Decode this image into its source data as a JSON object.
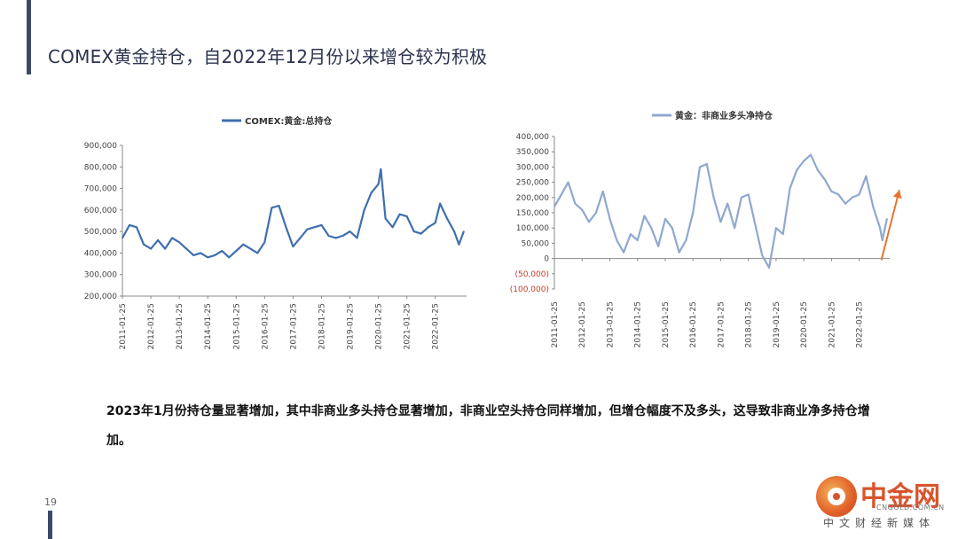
{
  "page": {
    "title": "COMEX黄金持仓，自2022年12月份以来增仓较为积极",
    "body_text": "2023年1月份持仓量显著增加，其中非商业多头持仓显著增加，非商业空头持仓同样增加，但增仓幅度不及多头，这导致非商业净多持仓增加。",
    "page_number": "19"
  },
  "logo": {
    "name": "中金网",
    "site": "CNGOLD.COM.CN",
    "tagline": "中文财经新媒体"
  },
  "colors": {
    "title": "#2b3450",
    "accent_bar": "#3b4a6b",
    "series_left": "#3f6fae",
    "series_right": "#8fa8cf",
    "arrow": "#e8742e",
    "negative_tick": "#c0392b"
  },
  "chart_data": [
    {
      "type": "line",
      "legend": "COMEX:黄金:总持仓",
      "legend_position": "top",
      "ylim": [
        200000,
        900000
      ],
      "yticks": [
        "200,000",
        "300,000",
        "400,000",
        "500,000",
        "600,000",
        "700,000",
        "800,000",
        "900,000"
      ],
      "ytick_values": [
        200000,
        300000,
        400000,
        500000,
        600000,
        700000,
        800000,
        900000
      ],
      "xticks": [
        "2011-01-25",
        "2012-01-25",
        "2013-01-25",
        "2014-01-25",
        "2015-01-25",
        "2016-01-25",
        "2017-01-25",
        "2018-01-25",
        "2019-01-25",
        "2020-01-25",
        "2021-01-25",
        "2022-01-25"
      ],
      "series": [
        {
          "name": "COMEX:黄金:总持仓",
          "x": [
            "2011-01",
            "2011-04",
            "2011-07",
            "2011-10",
            "2012-01",
            "2012-04",
            "2012-07",
            "2012-10",
            "2013-01",
            "2013-04",
            "2013-07",
            "2013-10",
            "2014-01",
            "2014-04",
            "2014-07",
            "2014-10",
            "2015-01",
            "2015-04",
            "2015-07",
            "2015-10",
            "2016-01",
            "2016-04",
            "2016-07",
            "2016-10",
            "2017-01",
            "2017-04",
            "2017-07",
            "2017-10",
            "2018-01",
            "2018-04",
            "2018-07",
            "2018-10",
            "2019-01",
            "2019-04",
            "2019-07",
            "2019-10",
            "2020-01",
            "2020-02",
            "2020-04",
            "2020-07",
            "2020-10",
            "2021-01",
            "2021-04",
            "2021-07",
            "2021-10",
            "2022-01",
            "2022-03",
            "2022-06",
            "2022-09",
            "2022-11",
            "2023-01"
          ],
          "values": [
            470000,
            530000,
            520000,
            440000,
            420000,
            460000,
            420000,
            470000,
            450000,
            420000,
            390000,
            400000,
            380000,
            390000,
            410000,
            380000,
            410000,
            440000,
            420000,
            400000,
            450000,
            610000,
            620000,
            520000,
            430000,
            470000,
            510000,
            520000,
            530000,
            480000,
            470000,
            480000,
            500000,
            470000,
            600000,
            680000,
            720000,
            790000,
            560000,
            520000,
            580000,
            570000,
            500000,
            490000,
            520000,
            540000,
            630000,
            560000,
            500000,
            440000,
            500000
          ]
        }
      ]
    },
    {
      "type": "line",
      "legend": "黄金：非商业多头净持仓",
      "legend_position": "top",
      "ylim": [
        -100000,
        400000
      ],
      "yticks": [
        "(100,000)",
        "(50,000)",
        "0",
        "50,000",
        "100,000",
        "150,000",
        "200,000",
        "250,000",
        "300,000",
        "350,000",
        "400,000"
      ],
      "ytick_values": [
        -100000,
        -50000,
        0,
        50000,
        100000,
        150000,
        200000,
        250000,
        300000,
        350000,
        400000
      ],
      "xticks": [
        "2011-01-25",
        "2012-01-25",
        "2013-01-25",
        "2014-01-25",
        "2015-01-25",
        "2016-01-25",
        "2017-01-25",
        "2018-01-25",
        "2019-01-25",
        "2020-01-25",
        "2021-01-25",
        "2022-01-25"
      ],
      "series": [
        {
          "name": "黄金：非商业多头净持仓",
          "x": [
            "2011-01",
            "2011-04",
            "2011-07",
            "2011-10",
            "2012-01",
            "2012-04",
            "2012-07",
            "2012-10",
            "2013-01",
            "2013-04",
            "2013-07",
            "2013-10",
            "2014-01",
            "2014-04",
            "2014-07",
            "2014-10",
            "2015-01",
            "2015-04",
            "2015-07",
            "2015-10",
            "2016-01",
            "2016-04",
            "2016-07",
            "2016-10",
            "2017-01",
            "2017-04",
            "2017-07",
            "2017-10",
            "2018-01",
            "2018-04",
            "2018-07",
            "2018-10",
            "2019-01",
            "2019-04",
            "2019-07",
            "2019-10",
            "2020-01",
            "2020-04",
            "2020-07",
            "2020-10",
            "2021-01",
            "2021-04",
            "2021-07",
            "2021-10",
            "2022-01",
            "2022-04",
            "2022-07",
            "2022-10",
            "2022-11",
            "2023-01"
          ],
          "values": [
            170000,
            210000,
            250000,
            180000,
            160000,
            120000,
            150000,
            220000,
            130000,
            60000,
            20000,
            80000,
            60000,
            140000,
            100000,
            40000,
            130000,
            100000,
            20000,
            60000,
            150000,
            300000,
            310000,
            200000,
            120000,
            180000,
            100000,
            200000,
            210000,
            110000,
            10000,
            -30000,
            100000,
            80000,
            230000,
            290000,
            320000,
            340000,
            290000,
            260000,
            220000,
            210000,
            180000,
            200000,
            210000,
            270000,
            170000,
            100000,
            60000,
            130000
          ]
        }
      ]
    }
  ]
}
